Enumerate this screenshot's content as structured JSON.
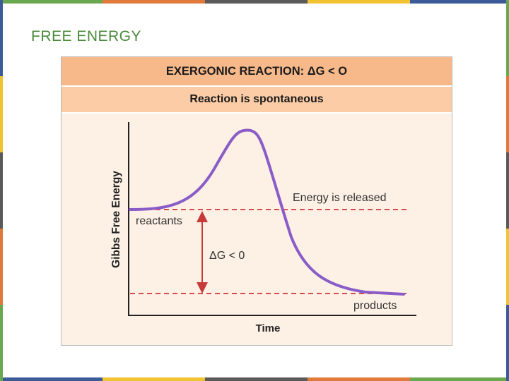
{
  "slide": {
    "title": "FREE ENERGY"
  },
  "diagram": {
    "header": "EXERGONIC REACTION: ΔG < O",
    "subheader": "Reaction is spontaneous",
    "y_axis_label": "Gibbs Free Energy",
    "x_axis_label": "Time",
    "label_reactants": "reactants",
    "label_products": "products",
    "label_energy_released": "Energy is released",
    "label_delta_g": "ΔG < 0",
    "curve_color": "#8a5cc8",
    "dashed_line_color": "#d94a4a",
    "arrow_color": "#c83a3a"
  },
  "colors": {
    "banner": "#f7b98a",
    "background": "#fdf1e6",
    "title": "#4a8a3a"
  }
}
